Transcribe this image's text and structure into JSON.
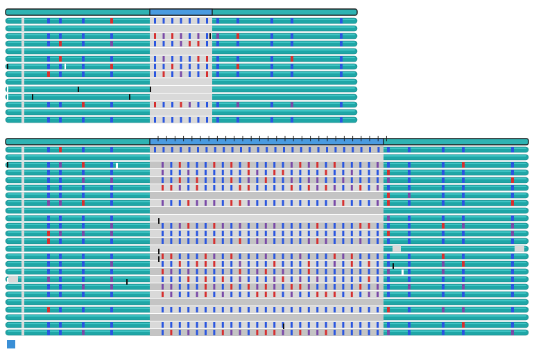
{
  "colors": {
    "background": "#ffffff",
    "read_teal": "#1fa6a6",
    "read_teal_light": "#3fc4c4",
    "read_outline": "#167f80",
    "ref_bar": "#2fb3b3",
    "ref_outline": "#1a1a1a",
    "selection": "#4a9be0",
    "gap_grey": "#d9d9d9",
    "gap_grey_dark": "#c4c4c4",
    "tick_blue": "#2a56e0",
    "tick_purple": "#7a4aa8",
    "tick_red": "#d63030",
    "tick_black": "#111111",
    "tick_white": "#ffffff",
    "legend_blue": "#3a8fd6"
  },
  "icons": {
    "legend": "legend-square-icon"
  },
  "panels": [
    {
      "name": "alignment-panel-top",
      "ref_span": "full-with-selection",
      "highlighted_region": "center",
      "read_count": 14,
      "selection_ticks": 0
    },
    {
      "name": "alignment-panel-bottom",
      "ref_span": "full-with-ticks",
      "highlighted_region": "center",
      "read_count": 25,
      "selection_ticks": 28
    }
  ]
}
